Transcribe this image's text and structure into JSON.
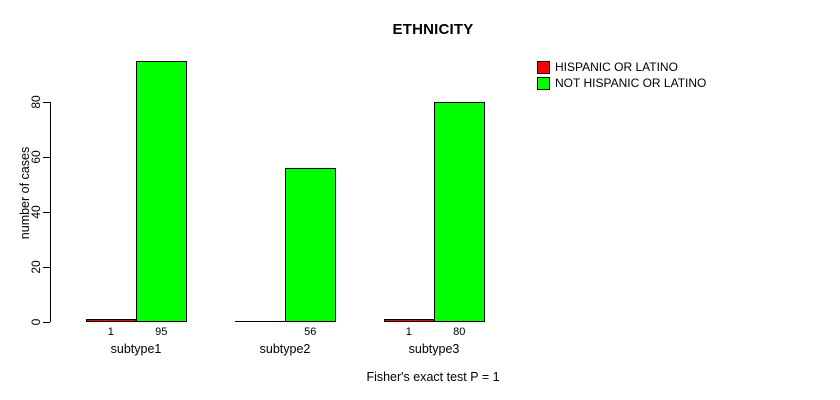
{
  "chart_data": {
    "type": "bar",
    "title": "ETHNICITY",
    "subtitle": "Fisher's exact test P = 1",
    "xlabel": "",
    "ylabel": "number of cases",
    "categories": [
      "subtype1",
      "subtype2",
      "subtype3"
    ],
    "series": [
      {
        "name": "HISPANIC OR LATINO",
        "color": "#ff0000",
        "values": [
          1,
          0,
          1
        ]
      },
      {
        "name": "NOT HISPANIC OR LATINO",
        "color": "#00ff00",
        "values": [
          95,
          56,
          80
        ]
      }
    ],
    "bar_value_labels": [
      [
        "1",
        "95"
      ],
      [
        "",
        "56"
      ],
      [
        "1",
        "80"
      ]
    ],
    "yticks": [
      0,
      20,
      40,
      60,
      80
    ],
    "ylim": [
      0,
      95
    ],
    "grid": false,
    "legend_position": "top-right",
    "axis_color": "#000000",
    "bar_border_color": "#000000",
    "text_color": "#000000",
    "background_color": "#ffffff"
  }
}
